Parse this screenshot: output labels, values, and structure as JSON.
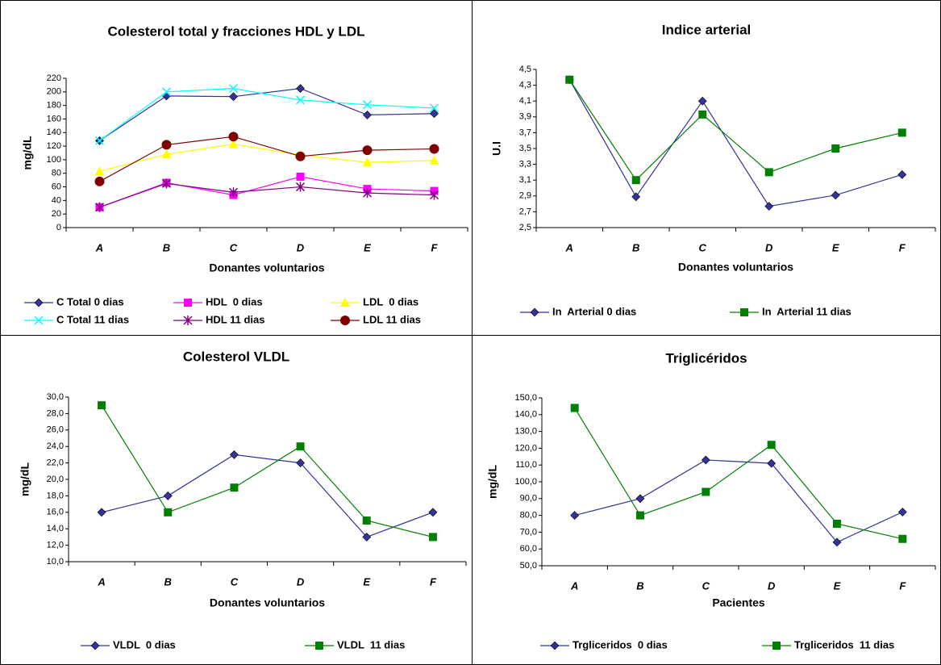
{
  "chart_data": [
    {
      "type": "line",
      "title": "Colesterol total y fracciones HDL y LDL",
      "x_label": "Donantes voluntarios",
      "y_label": "mg/dL",
      "categories": [
        "A",
        "B",
        "C",
        "D",
        "E",
        "F"
      ],
      "ylim": [
        0,
        220
      ],
      "yticks": [
        0,
        20,
        40,
        60,
        80,
        100,
        120,
        140,
        160,
        180,
        200,
        220
      ],
      "series": [
        {
          "name": "C Total 0 dias",
          "color": "#333399",
          "marker": "diamond",
          "values": [
            128,
            194,
            193,
            205,
            166,
            168
          ]
        },
        {
          "name": "HDL  0 dias",
          "color": "#ff00ff",
          "marker": "square",
          "values": [
            30,
            66,
            48,
            75,
            57,
            54
          ]
        },
        {
          "name": "LDL  0 dias",
          "color": "#ffff00",
          "marker": "triangle",
          "values": [
            83,
            108,
            123,
            107,
            96,
            99
          ]
        },
        {
          "name": "C Total 11 dias",
          "color": "#00ffff",
          "marker": "x",
          "values": [
            128,
            200,
            205,
            188,
            181,
            176
          ]
        },
        {
          "name": "HDL 11 dias",
          "color": "#800080",
          "marker": "star",
          "values": [
            30,
            65,
            52,
            60,
            51,
            48
          ]
        },
        {
          "name": "LDL 11 dias",
          "color": "#800000",
          "marker": "circle",
          "values": [
            68,
            122,
            134,
            105,
            114,
            116
          ]
        }
      ]
    },
    {
      "type": "line",
      "title": "Indice arterial",
      "x_label": "Donantes voluntarios",
      "y_label": "U.I",
      "categories": [
        "A",
        "B",
        "C",
        "D",
        "E",
        "F"
      ],
      "ylim": [
        2.5,
        4.5
      ],
      "yticks": [
        {
          "value": 2.5,
          "label": "2,5"
        },
        {
          "value": 2.7,
          "label": "2,7"
        },
        {
          "value": 2.9,
          "label": "2,9"
        },
        {
          "value": 3.1,
          "label": "3,1"
        },
        {
          "value": 3.3,
          "label": "3,3"
        },
        {
          "value": 3.5,
          "label": "3,5"
        },
        {
          "value": 3.7,
          "label": "3,7"
        },
        {
          "value": 3.9,
          "label": "3,9"
        },
        {
          "value": 4.1,
          "label": "4,1"
        },
        {
          "value": 4.3,
          "label": "4,3"
        },
        {
          "value": 4.5,
          "label": "4,5"
        }
      ],
      "series": [
        {
          "name": "In  Arterial 0 dias",
          "color": "#333399",
          "marker": "diamond",
          "values": [
            4.37,
            2.89,
            4.1,
            2.77,
            2.91,
            3.17
          ]
        },
        {
          "name": "In  Arterial 11 dias",
          "color": "#008000",
          "marker": "square",
          "values": [
            4.37,
            3.1,
            3.93,
            3.2,
            3.5,
            3.7
          ]
        }
      ]
    },
    {
      "type": "line",
      "title": "Colesterol VLDL",
      "x_label": "Donantes voluntarios",
      "y_label": "mg/dL",
      "categories": [
        "A",
        "B",
        "C",
        "D",
        "E",
        "F"
      ],
      "ylim": [
        10,
        30
      ],
      "yticks": [
        {
          "value": 10,
          "label": "10,0"
        },
        {
          "value": 12,
          "label": "12,0"
        },
        {
          "value": 14,
          "label": "14,0"
        },
        {
          "value": 16,
          "label": "16,0"
        },
        {
          "value": 18,
          "label": "18,0"
        },
        {
          "value": 20,
          "label": "20,0"
        },
        {
          "value": 22,
          "label": "22,0"
        },
        {
          "value": 24,
          "label": "24,0"
        },
        {
          "value": 26,
          "label": "26,0"
        },
        {
          "value": 28,
          "label": "28,0"
        },
        {
          "value": 30,
          "label": "30,0"
        }
      ],
      "series": [
        {
          "name": "VLDL  0 dias",
          "color": "#333399",
          "marker": "diamond",
          "values": [
            16,
            18,
            23,
            22,
            13,
            16
          ]
        },
        {
          "name": "VLDL  11 dias",
          "color": "#008000",
          "marker": "square",
          "values": [
            29,
            16,
            19,
            24,
            15,
            13
          ]
        }
      ]
    },
    {
      "type": "line",
      "title": "Triglicéridos",
      "x_label": "Pacientes",
      "y_label": "mg/dL",
      "categories": [
        "A",
        "B",
        "C",
        "D",
        "E",
        "F"
      ],
      "ylim": [
        50,
        150
      ],
      "yticks": [
        {
          "value": 50,
          "label": "50,0"
        },
        {
          "value": 60,
          "label": "60,0"
        },
        {
          "value": 70,
          "label": "70,0"
        },
        {
          "value": 80,
          "label": "80,0"
        },
        {
          "value": 90,
          "label": "90,0"
        },
        {
          "value": 100,
          "label": "100,0"
        },
        {
          "value": 110,
          "label": "110,0"
        },
        {
          "value": 120,
          "label": "120,0"
        },
        {
          "value": 130,
          "label": "130,0"
        },
        {
          "value": 140,
          "label": "140,0"
        },
        {
          "value": 150,
          "label": "150,0"
        }
      ],
      "series": [
        {
          "name": "Trgliceridos  0 dias",
          "color": "#333399",
          "marker": "diamond",
          "values": [
            80,
            90,
            113,
            111,
            64,
            82
          ]
        },
        {
          "name": "Trgliceridos  11 dias",
          "color": "#008000",
          "marker": "square",
          "values": [
            144,
            80,
            94,
            122,
            75,
            66
          ]
        }
      ]
    }
  ]
}
